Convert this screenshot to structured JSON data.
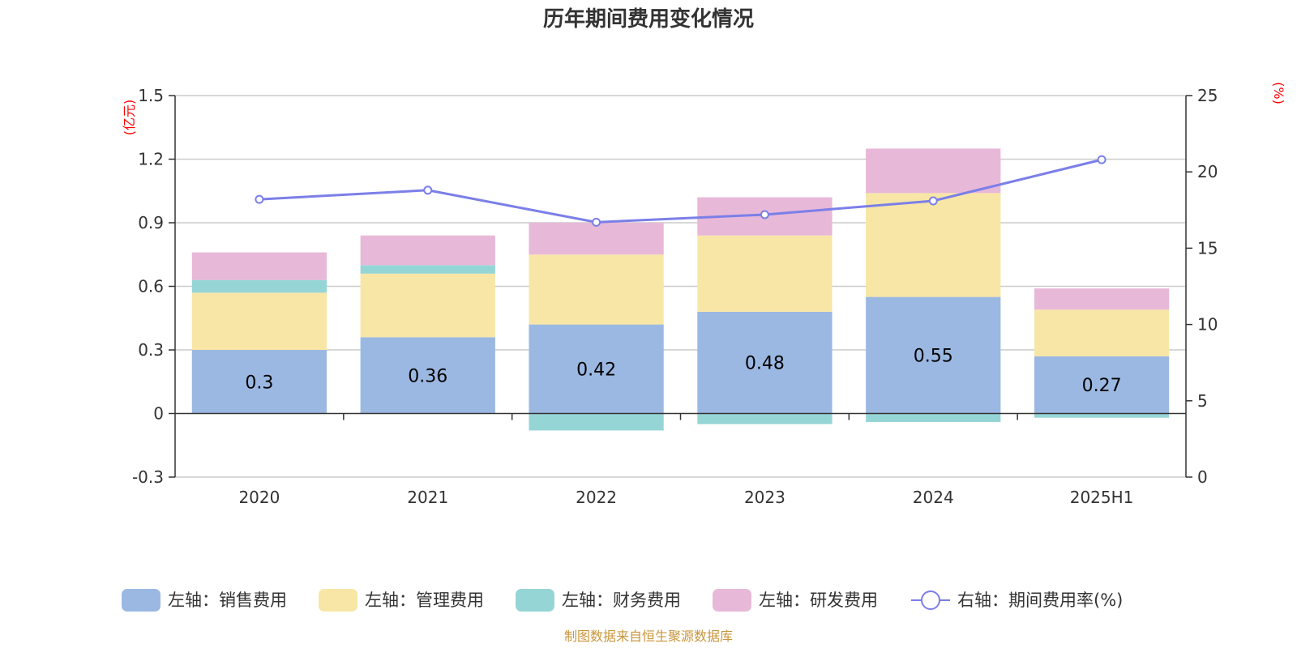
{
  "chart_data": {
    "type": "bar",
    "title": "历年期间费用变化情况",
    "categories": [
      "2020",
      "2021",
      "2022",
      "2023",
      "2024",
      "2025H1"
    ],
    "left_axis": {
      "unit": "(亿元)",
      "ylim": [
        -0.3,
        1.5
      ],
      "ticks": [
        1.5,
        1.2,
        0.9,
        0.6,
        0.3,
        0,
        -0.3
      ],
      "tick_labels": [
        "1.5",
        "1.2",
        "0.9",
        "0.6",
        "0.3",
        "0",
        "-0.3"
      ]
    },
    "right_axis": {
      "unit": "(%)",
      "ylim": [
        0,
        25
      ],
      "ticks": [
        25,
        20,
        15,
        10,
        5,
        0
      ],
      "tick_labels": [
        "25",
        "20",
        "15",
        "10",
        "5",
        "0"
      ]
    },
    "series": [
      {
        "name": "左轴：销售费用",
        "axis": "left",
        "kind": "bar",
        "color": "#9bb8e2",
        "values": [
          0.3,
          0.36,
          0.42,
          0.48,
          0.55,
          0.27
        ],
        "labels": [
          "0.3",
          "0.36",
          "0.42",
          "0.48",
          "0.55",
          "0.27"
        ]
      },
      {
        "name": "左轴：管理费用",
        "axis": "left",
        "kind": "bar",
        "color": "#f7e6a6",
        "values": [
          0.27,
          0.3,
          0.33,
          0.36,
          0.49,
          0.22
        ]
      },
      {
        "name": "左轴：财务费用",
        "axis": "left",
        "kind": "bar",
        "color": "#96d5d6",
        "values": [
          0.06,
          0.04,
          -0.08,
          -0.05,
          -0.04,
          -0.02
        ]
      },
      {
        "name": "左轴：研发费用",
        "axis": "left",
        "kind": "bar",
        "color": "#e8b8d8",
        "values": [
          0.13,
          0.14,
          0.15,
          0.18,
          0.21,
          0.1
        ]
      },
      {
        "name": "右轴：期间费用率(%)",
        "axis": "right",
        "kind": "line",
        "color": "#7b7fe8",
        "values": [
          18.2,
          18.8,
          16.7,
          17.2,
          18.1,
          20.8
        ]
      }
    ],
    "grid": true,
    "legend_position": "bottom"
  },
  "source_note": "制图数据来自恒生聚源数据库"
}
